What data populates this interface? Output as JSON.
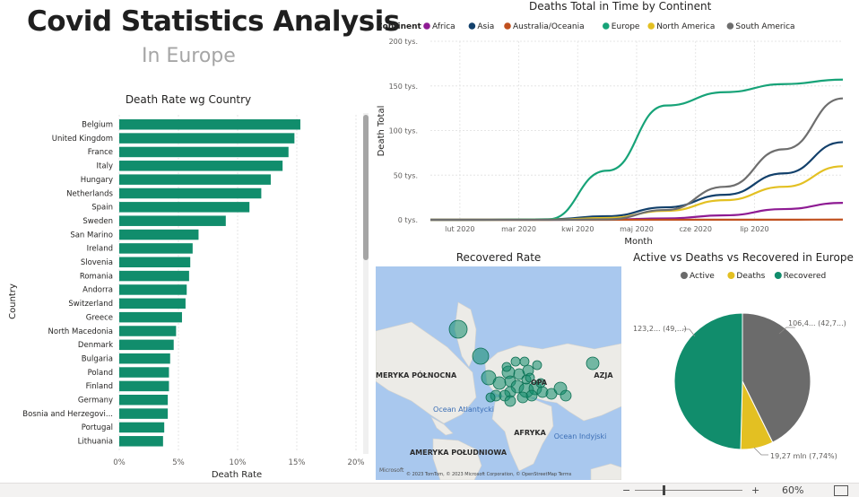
{
  "header": {
    "title": "Covid Statistics Analysis",
    "subtitle": "In Europe"
  },
  "colors": {
    "teal": "#118d6c",
    "asia": "#12406b",
    "europe": "#17a378",
    "na": "#e3c022",
    "sa": "#6e6e6e",
    "africa": "#8e1b93",
    "oceania": "#c0501e"
  },
  "chart_data": [
    {
      "type": "bar",
      "orientation": "horizontal",
      "title": "Death Rate wg Country",
      "xlabel": "Death Rate",
      "ylabel": "Country",
      "xlim": [
        0,
        20
      ],
      "x_ticks": [
        "0%",
        "5%",
        "10%",
        "15%",
        "20%"
      ],
      "categories": [
        "Belgium",
        "United Kingdom",
        "France",
        "Italy",
        "Hungary",
        "Netherlands",
        "Spain",
        "Sweden",
        "San Marino",
        "Ireland",
        "Slovenia",
        "Romania",
        "Andorra",
        "Switzerland",
        "Greece",
        "North Macedonia",
        "Denmark",
        "Bulgaria",
        "Poland",
        "Finland",
        "Germany",
        "Bosnia and Herzegovi...",
        "Portugal",
        "Lithuania"
      ],
      "values": [
        15.3,
        14.8,
        14.3,
        13.8,
        12.8,
        12.0,
        11.0,
        9.0,
        6.7,
        6.2,
        6.0,
        5.9,
        5.7,
        5.6,
        5.3,
        4.8,
        4.6,
        4.3,
        4.2,
        4.2,
        4.1,
        4.1,
        3.8,
        3.7
      ]
    },
    {
      "type": "line",
      "title": "Deaths Total in Time by Continent",
      "xlabel": "Month",
      "ylabel": "Death Total",
      "legend_title": "Continent",
      "legend_position": "top",
      "ylim": [
        0,
        200000
      ],
      "y_ticks": [
        "0 tys.",
        "50 tys.",
        "100 tys.",
        "150 tys.",
        "200 tys."
      ],
      "x_ticks": [
        "lut 2020",
        "mar 2020",
        "kwi 2020",
        "maj 2020",
        "cze 2020",
        "lip 2020"
      ],
      "x_months": [
        0,
        1,
        2,
        3,
        4,
        5,
        6,
        7
      ],
      "series": [
        {
          "name": "Africa",
          "values": [
            0,
            0,
            0,
            300,
            1500,
            5000,
            12000,
            19000
          ]
        },
        {
          "name": "Asia",
          "values": [
            0,
            50,
            500,
            4000,
            14000,
            28000,
            52000,
            87000
          ]
        },
        {
          "name": "Australia/Oceania",
          "values": [
            0,
            0,
            0,
            30,
            80,
            100,
            120,
            250
          ]
        },
        {
          "name": "Europe",
          "values": [
            0,
            10,
            500,
            55000,
            128000,
            143000,
            152000,
            157000
          ]
        },
        {
          "name": "North America",
          "values": [
            0,
            0,
            20,
            2000,
            10000,
            22000,
            37000,
            60000
          ]
        },
        {
          "name": "South America",
          "values": [
            0,
            0,
            10,
            500,
            11000,
            37000,
            79000,
            136000
          ]
        }
      ]
    },
    {
      "type": "pie",
      "title": "Active vs Deaths vs Recovered in Europe",
      "legend_position": "top",
      "labels": [
        "Active",
        "Deaths",
        "Recovered"
      ],
      "values": [
        42.7,
        7.74,
        49.6
      ],
      "data_labels": [
        "106,4... (42,7...)",
        "19,27 mln (7,74%)",
        "123,2... (49,...)"
      ]
    }
  ],
  "map": {
    "title": "Recovered Rate",
    "labels": [
      "AMERYKA PÓŁNOCNA",
      "AZJA",
      "OPA",
      "AFRYKA",
      "AMERYKA POŁUDNIOWA",
      "Ocean Atlantycki",
      "Ocean Indyjski"
    ],
    "attribution": "© 2023 TomTom, © 2023 Microsoft Corporation, © OpenStreetMap Terms",
    "logo": "Microsoft"
  },
  "status_bar": {
    "zoom": "60%",
    "minus": "−",
    "plus": "+"
  }
}
